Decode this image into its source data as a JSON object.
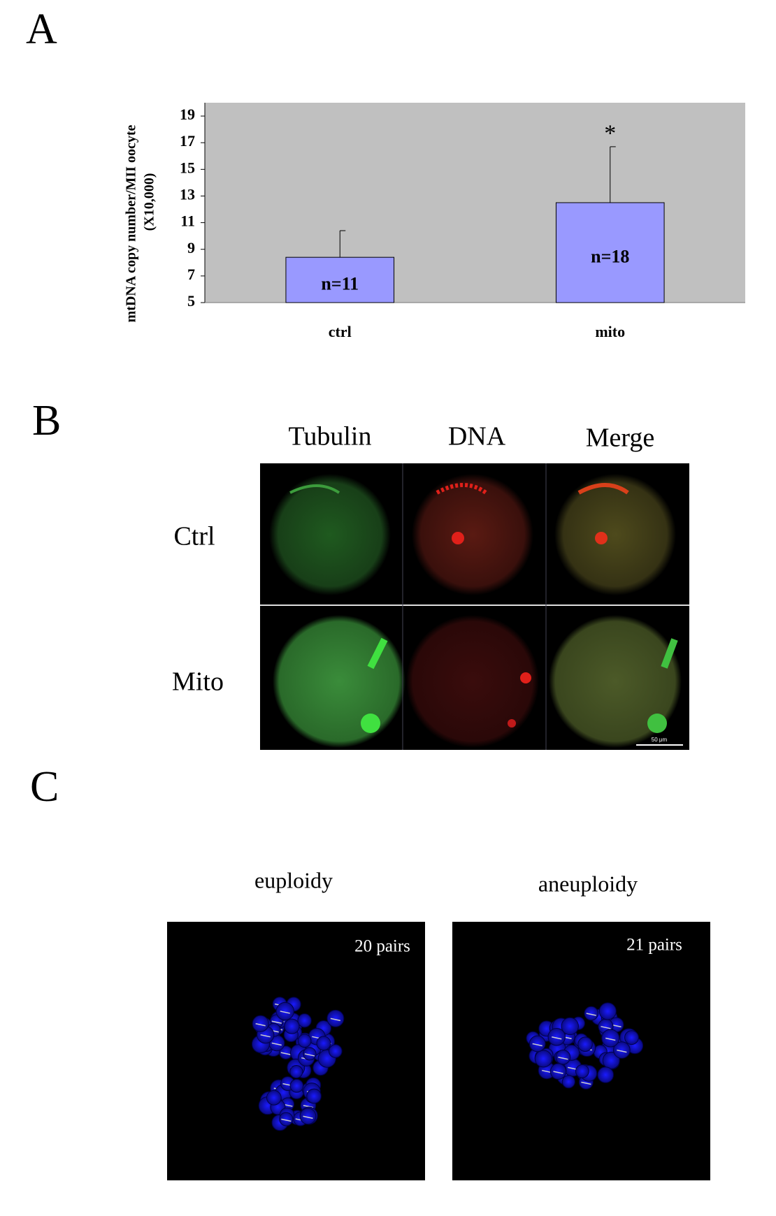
{
  "chart_data": {
    "type": "bar",
    "y_label": "mtDNA copy number/MII oocyte",
    "y_label_unit": "(X10,000)",
    "categories": [
      "ctrl",
      "mito"
    ],
    "values": [
      8.4,
      12.5
    ],
    "errors": [
      2.0,
      4.2
    ],
    "bar_labels": [
      "n=11",
      "n=18"
    ],
    "significance_marks": [
      null,
      "*"
    ],
    "color": "#9999ff",
    "background": "#c0c0c0",
    "ylim": [
      5,
      20
    ],
    "yticks": [
      5,
      7,
      9,
      11,
      13,
      15,
      17,
      19
    ]
  },
  "panels": {
    "a": "A",
    "b": "B",
    "c": "C"
  },
  "panel_b": {
    "columns": [
      "Tubulin",
      "DNA",
      "Merge"
    ],
    "rows": [
      "Ctrl",
      "Mito"
    ],
    "scale_bar": "50 μm"
  },
  "panel_c": {
    "titles": [
      "euploidy",
      "aneuploidy"
    ],
    "counts": [
      "20 pairs",
      "21 pairs"
    ]
  }
}
